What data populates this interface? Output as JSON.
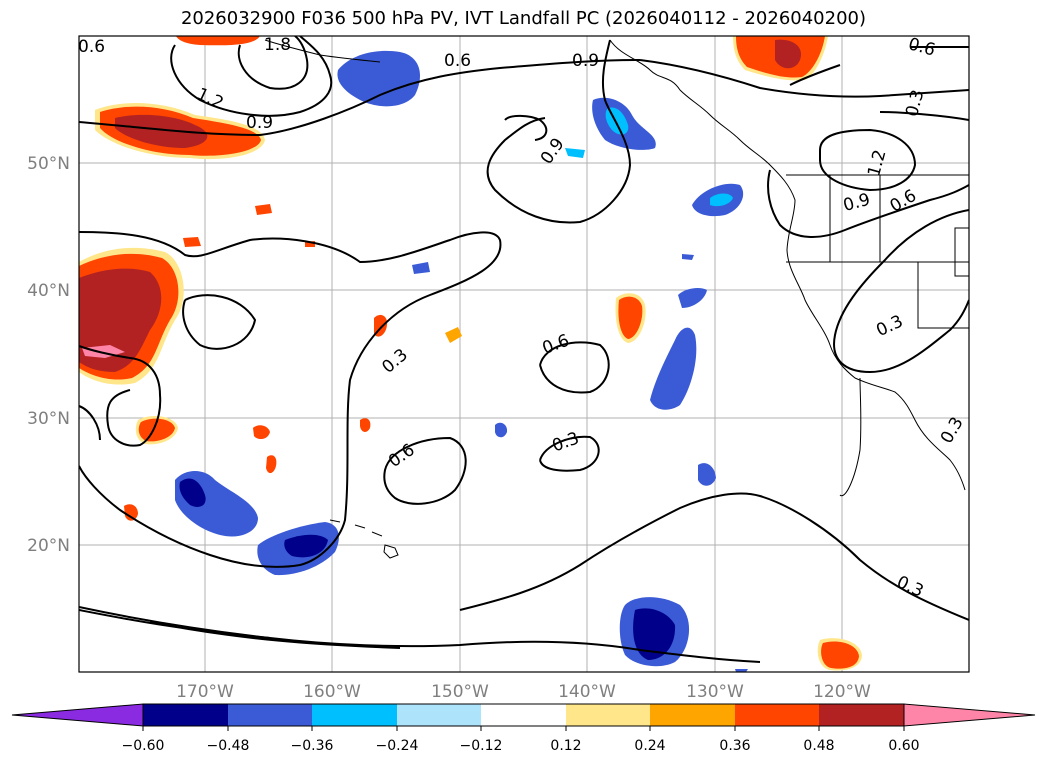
{
  "title": "2026032900 F036 500 hPa PV, IVT Landfall PC (2026040112 - 2026040200)",
  "lon_labels": [
    "170°W",
    "160°W",
    "150°W",
    "140°W",
    "130°W",
    "120°W"
  ],
  "lat_labels": [
    "50°N",
    "40°N",
    "30°N",
    "20°N"
  ],
  "contour_labels": [
    "0.6",
    "1.8",
    "1.2",
    "0.9",
    "0.6",
    "0.9",
    "0.9",
    "0.3",
    "1.2",
    "0.9",
    "0.6",
    "0.6",
    "0.3",
    "0.6",
    "0.3",
    "0.6",
    "0.3",
    "0.3",
    "0.3"
  ],
  "colorbar": {
    "colors": [
      "#8a2be2",
      "#00008b",
      "#3b5bd6",
      "#00bfff",
      "#aee4fb",
      "#ffffff",
      "#ffe68a",
      "#ffa500",
      "#ff4500",
      "#b22222",
      "#ff85a8",
      "#ff85a8"
    ],
    "ticks": [
      "−0.60",
      "−0.48",
      "−0.36",
      "−0.24",
      "−0.12",
      "0.12",
      "0.24",
      "0.36",
      "0.48",
      "0.60"
    ]
  }
}
